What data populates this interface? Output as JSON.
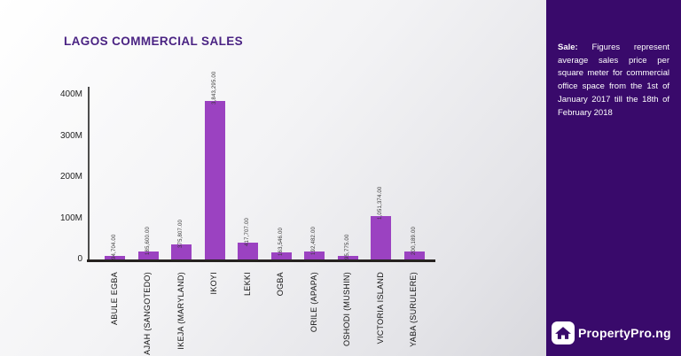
{
  "chart_data": {
    "type": "bar",
    "title": "LAGOS COMMERCIAL SALES",
    "categories": [
      "ABULE EGBA",
      "AJAH (SANGOTEDO)",
      "IKEJA (MARYLAND)",
      "IKOYI",
      "LEKKI",
      "OGBA",
      "ORILE (APAPA)",
      "OSHODI (MUSHIN)",
      "VICTORIA ISLAND",
      "YABA (SURULERE)"
    ],
    "values": [
      94704.0,
      185600.0,
      375807.0,
      3843295.0,
      417707.0,
      163546.0,
      192482.0,
      95775.0,
      1051374.0,
      200189.0
    ],
    "value_labels": [
      "94,704.00",
      "185,600.00",
      "375,807.00",
      "3,843,295.00",
      "417,707.00",
      "163,546.00",
      "192,482.00",
      "95,775.00",
      "1,051,374.00",
      "200,189.00"
    ],
    "xlabel": "",
    "ylabel": "",
    "y_ticks": [
      {
        "label": "400M",
        "value": 400
      },
      {
        "label": "300M",
        "value": 300
      },
      {
        "label": "200M",
        "value": 200
      },
      {
        "label": "100M",
        "value": 100
      },
      {
        "label": "0",
        "value": 0
      }
    ],
    "ylim_axis_millions": [
      0,
      400
    ],
    "axis_unit_note": "axis shown in millions; bar heights correspond to value x 100",
    "grid": false,
    "legend": false,
    "bar_color": "#9b42c1"
  },
  "sidebar": {
    "note": {
      "lead": "Sale:",
      "body": "Figures represent average sales price per square meter for commercial office space from the 1st of January 2017 till the 18th of February 2018"
    },
    "brand": {
      "name": "PropertyPro.ng",
      "icon": "house-icon"
    }
  },
  "colors": {
    "sidebar_bg": "#390a6b",
    "title": "#4a2383",
    "bar": "#9b42c1",
    "axis_x": "#262220",
    "axis_y": "#4d4d4d"
  }
}
